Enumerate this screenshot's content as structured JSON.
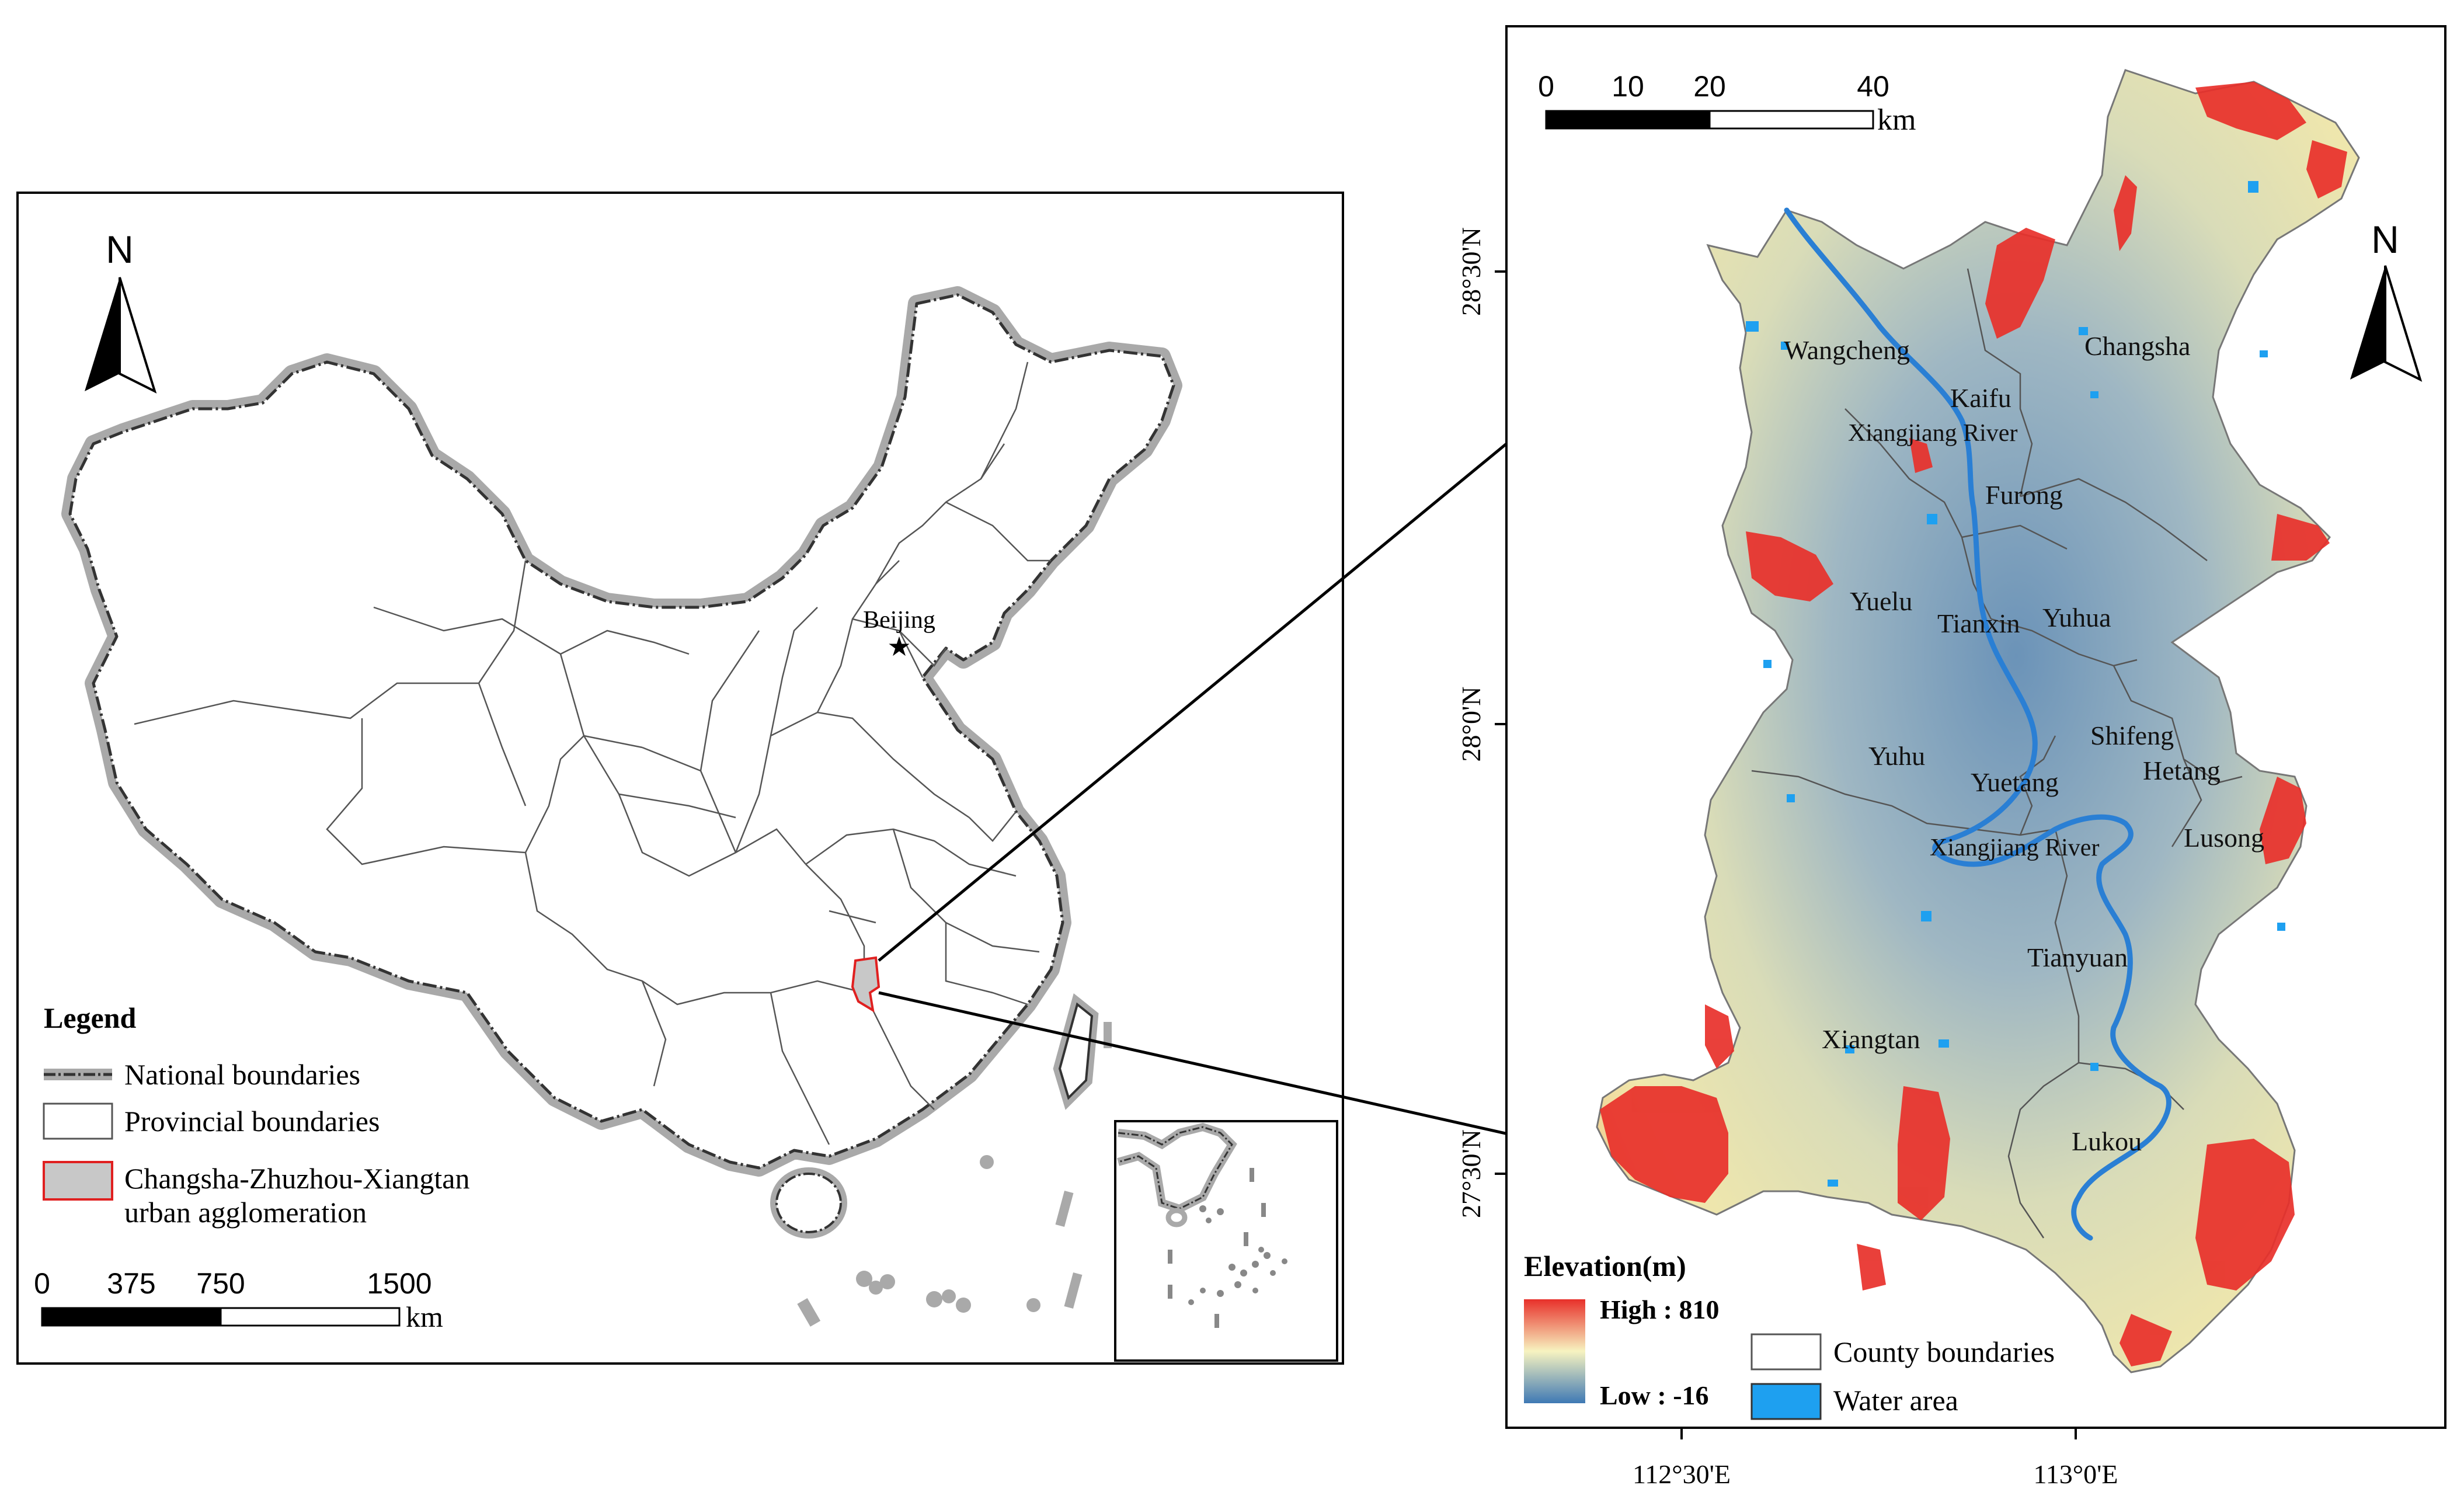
{
  "left_map": {
    "north_label": "N",
    "capital_label": "Beijing",
    "legend": {
      "title": "Legend",
      "national": "National boundaries",
      "provincial": "Provincial boundaries",
      "agglomeration_line1": "Changsha-Zhuzhou-Xiangtan",
      "agglomeration_line2": "urban agglomeration"
    },
    "scale": {
      "ticks": [
        "0",
        "375",
        "750",
        "1500"
      ],
      "unit": "km"
    }
  },
  "right_map": {
    "north_label": "N",
    "scale": {
      "ticks": [
        "0",
        "10",
        "20",
        "40"
      ],
      "unit": "km"
    },
    "lat_labels": [
      "28°30'N",
      "28°0'N",
      "27°30'N"
    ],
    "lon_labels": [
      "112°30'E",
      "113°0'E"
    ],
    "districts": [
      "Wangcheng",
      "Changsha",
      "Kaifu",
      "Furong",
      "Yuelu",
      "Tianxin",
      "Yuhua",
      "Yuhu",
      "Shifeng",
      "Hetang",
      "Yuetang",
      "Lusong",
      "Tianyuan",
      "Xiangtan",
      "Lukou"
    ],
    "rivers": [
      "Xiangjiang River",
      "Xiangjiang River"
    ],
    "legend": {
      "title": "Elevation(m)",
      "high": "High : 810",
      "low": "Low : -16",
      "county": "County boundaries",
      "water": "Water area"
    },
    "colors": {
      "high": "#e8302a",
      "mid": "#f7f3c0",
      "low": "#3f79b4",
      "water": "#1ea0f0",
      "halo": "#a9a9a9",
      "agglomeration": "#e02020"
    }
  }
}
